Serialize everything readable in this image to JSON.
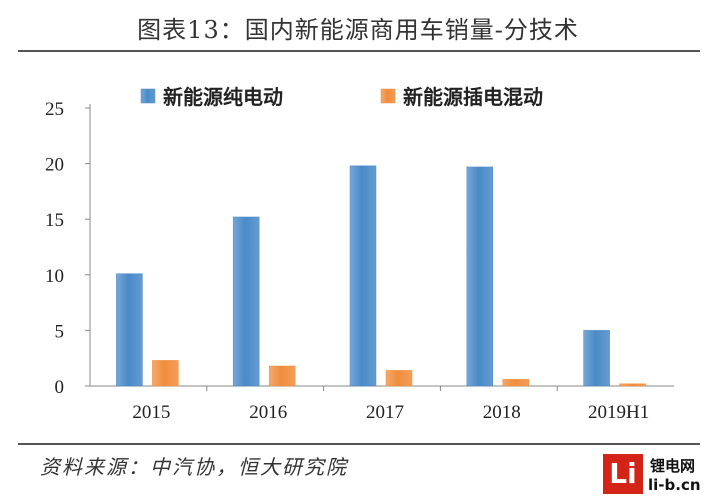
{
  "chart_data": {
    "type": "bar",
    "title": "图表13：国内新能源商用车销量-分技术",
    "categories": [
      "2015",
      "2016",
      "2017",
      "2018",
      "2019H1"
    ],
    "series": [
      {
        "name": "新能源纯电动",
        "values": [
          10.1,
          15.2,
          19.8,
          19.7,
          5.0
        ],
        "color": "#4a8ac8"
      },
      {
        "name": "新能源插电混动",
        "values": [
          2.3,
          1.8,
          1.4,
          0.6,
          0.2
        ],
        "color": "#f08d3c"
      }
    ],
    "yticks": [
      0,
      5,
      10,
      15,
      20,
      25
    ],
    "ylim": [
      0,
      25
    ],
    "xlabel": "",
    "ylabel": "",
    "grid": false,
    "legend_position": "top"
  },
  "source": "资料来源：中汽协，恒大研究院",
  "watermark": {
    "letter": "Li",
    "name": "锂电网",
    "url": "li-b.cn"
  }
}
